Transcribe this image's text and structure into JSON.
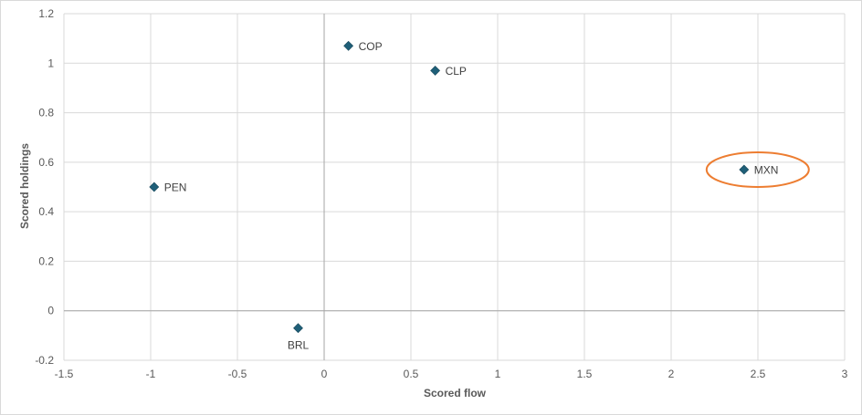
{
  "chart_data": {
    "type": "scatter",
    "xlabel": "Scored flow",
    "ylabel": "Scored holdings",
    "xlim": [
      -1.5,
      3
    ],
    "ylim": [
      -0.2,
      1.2
    ],
    "xticks": [
      -1.5,
      -1,
      -0.5,
      0,
      0.5,
      1,
      1.5,
      2,
      2.5,
      3
    ],
    "yticks": [
      -0.2,
      0,
      0.2,
      0.4,
      0.6,
      0.8,
      1,
      1.2
    ],
    "xtick_labels": [
      "-1.5",
      "-1",
      "-0.5",
      "0",
      "0.5",
      "1",
      "1.5",
      "2",
      "2.5",
      "3"
    ],
    "ytick_labels": [
      "-0.2",
      "0",
      "0.2",
      "0.4",
      "0.6",
      "0.8",
      "1",
      "1.2"
    ],
    "grid": true,
    "marker_color": "#1f5f78",
    "highlight_color": "#ed7d31",
    "points": [
      {
        "label": "COP",
        "x": 0.14,
        "y": 1.07,
        "label_pos": "right"
      },
      {
        "label": "CLP",
        "x": 0.64,
        "y": 0.97,
        "label_pos": "right"
      },
      {
        "label": "PEN",
        "x": -0.98,
        "y": 0.5,
        "label_pos": "right"
      },
      {
        "label": "MXN",
        "x": 2.42,
        "y": 0.57,
        "label_pos": "right",
        "highlight": true
      },
      {
        "label": "BRL",
        "x": -0.15,
        "y": -0.07,
        "label_pos": "below"
      }
    ]
  }
}
